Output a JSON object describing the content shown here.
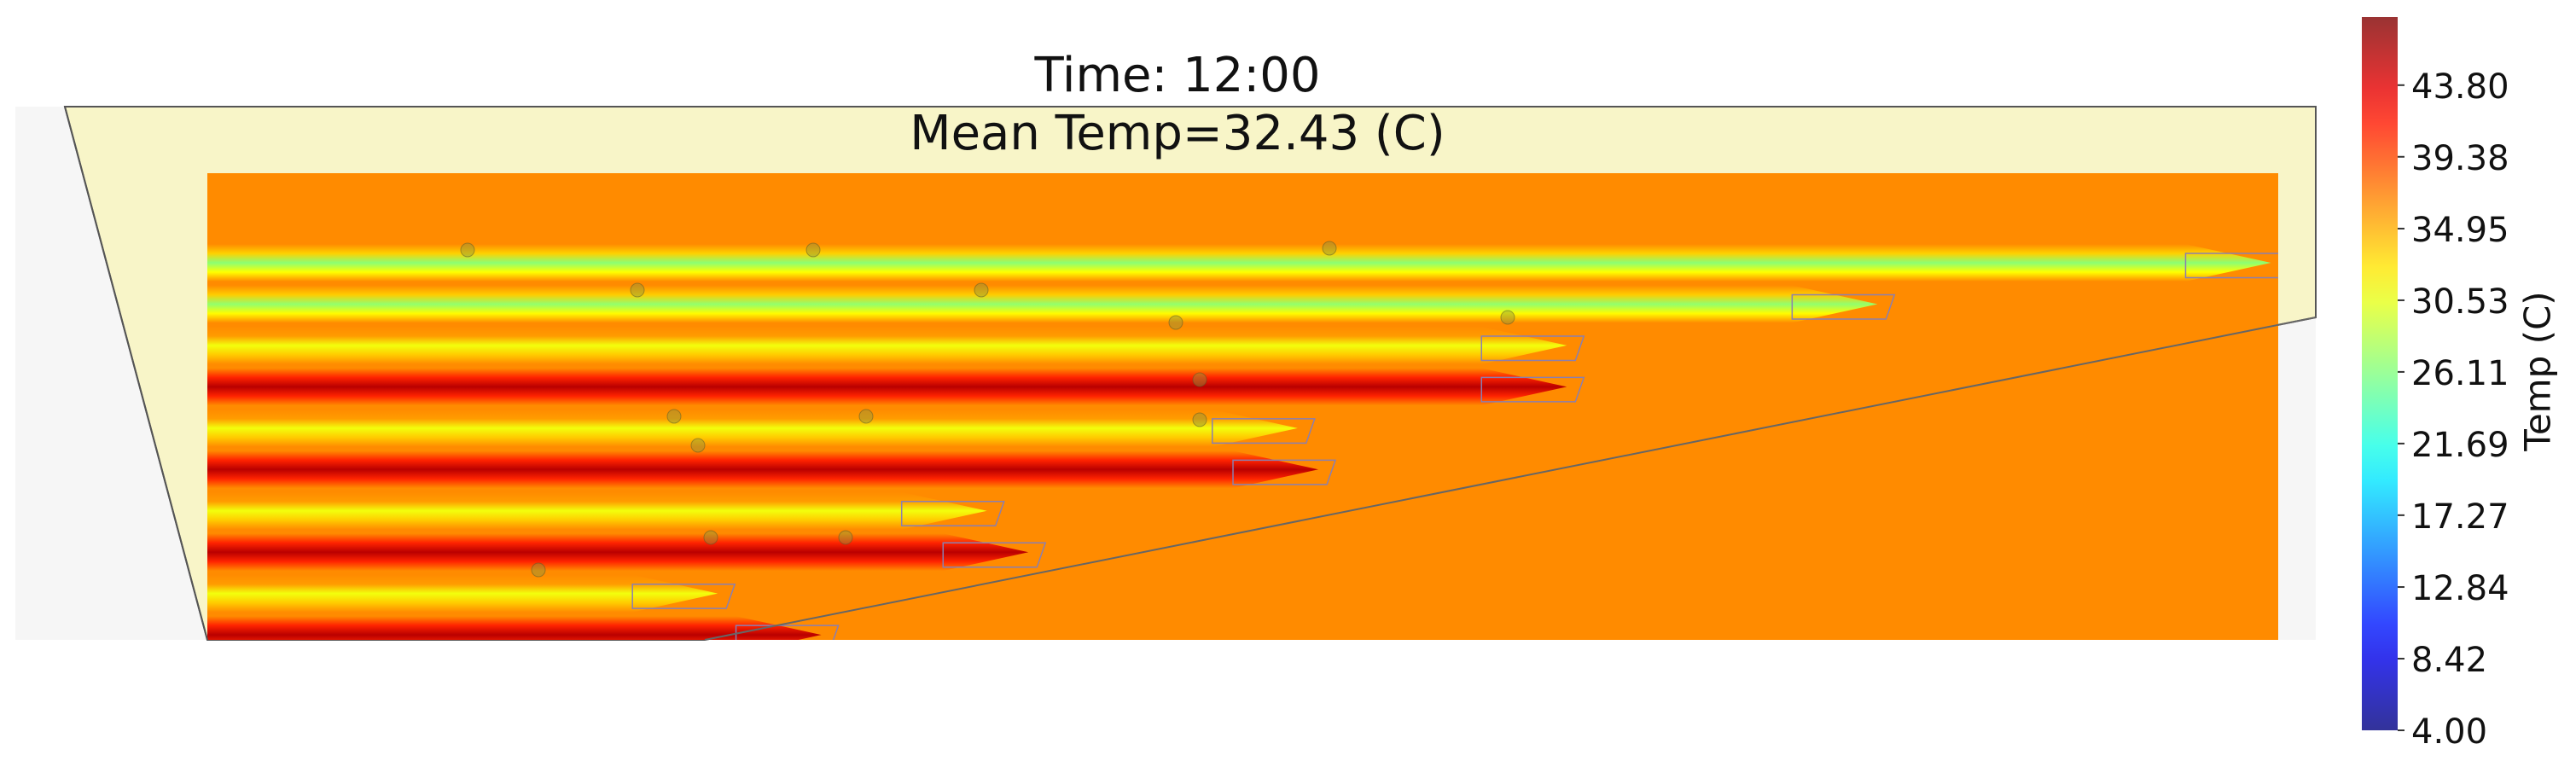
{
  "chart_data": {
    "type": "heatmap",
    "title_lines": [
      "Time: 12:00",
      "Mean Temp=32.43 (C)"
    ],
    "colorbar": {
      "label": "Temp (C)",
      "range": [
        4.0,
        48.0
      ],
      "ticks": [
        4.0,
        8.42,
        12.84,
        17.27,
        21.69,
        26.11,
        30.53,
        34.95,
        39.38,
        43.8
      ],
      "tick_labels": [
        "4.00",
        "8.42",
        "12.84",
        "17.27",
        "21.69",
        "26.11",
        "30.53",
        "34.95",
        "39.38",
        "43.80"
      ],
      "colormap": "jet"
    },
    "background_temp": 36.5,
    "bands": [
      {
        "row": 1,
        "reach": 0.98,
        "core_temp": 26.5
      },
      {
        "row": 2,
        "reach": 0.79,
        "core_temp": 26.8
      },
      {
        "row": 3,
        "reach": 0.64,
        "core_temp": 31.0
      },
      {
        "row": 4,
        "reach": 0.64,
        "core_temp": 45.5
      },
      {
        "row": 5,
        "reach": 0.51,
        "core_temp": 31.0
      },
      {
        "row": 6,
        "reach": 0.52,
        "core_temp": 45.5
      },
      {
        "row": 7,
        "reach": 0.36,
        "core_temp": 31.0
      },
      {
        "row": 8,
        "reach": 0.38,
        "core_temp": 45.5
      },
      {
        "row": 9,
        "reach": 0.23,
        "core_temp": 31.0
      },
      {
        "row": 10,
        "reach": 0.28,
        "core_temp": 45.5
      }
    ]
  }
}
